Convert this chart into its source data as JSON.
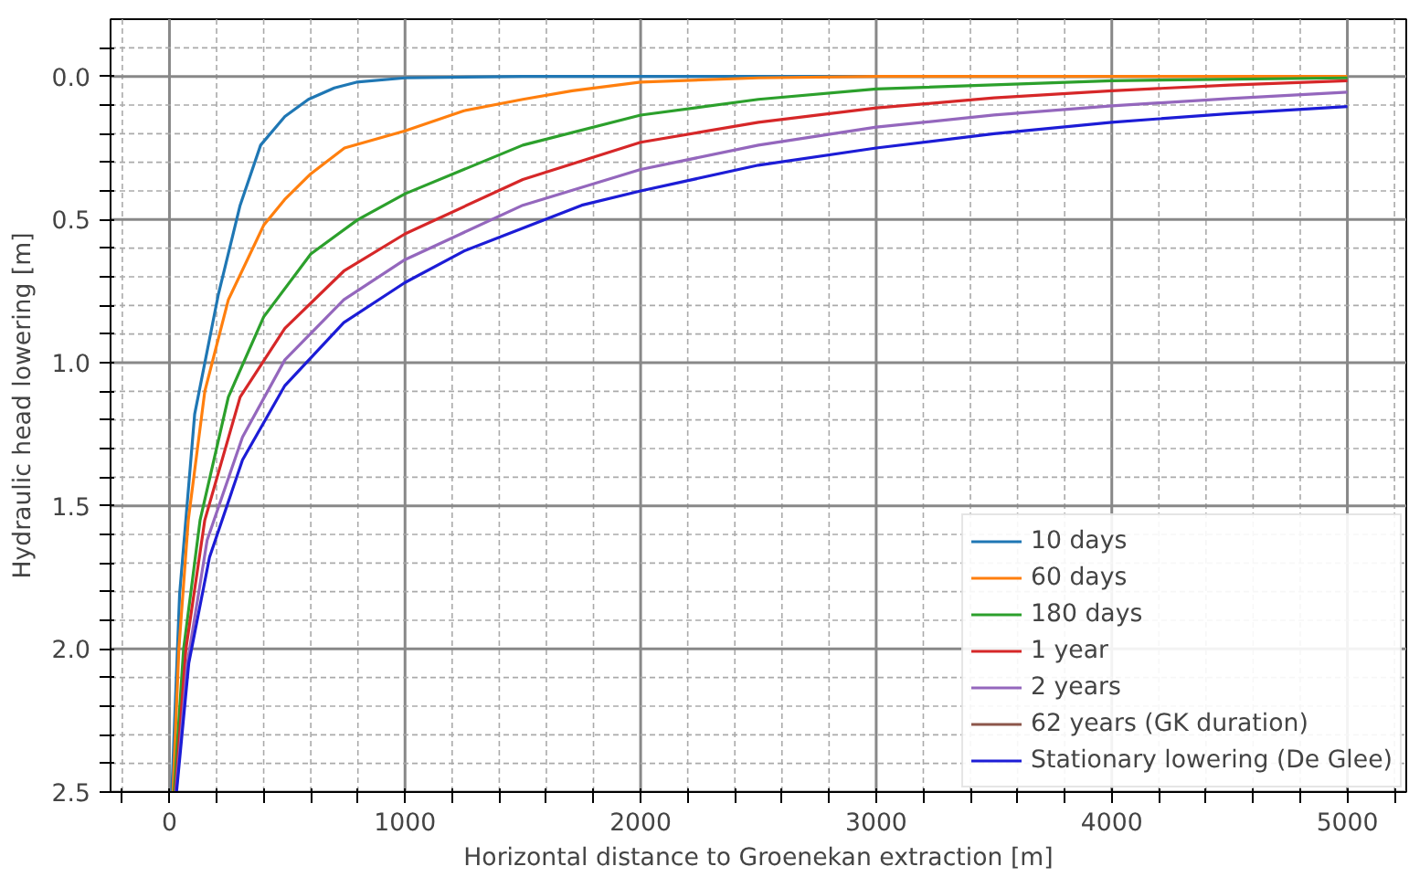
{
  "chart_data": {
    "type": "line",
    "xlabel": "Horizontal distance to Groenekan extraction [m]",
    "ylabel": "Hydraulic head lowering [m]",
    "xlim": [
      -250,
      5250
    ],
    "ylim": [
      2.5,
      -0.2
    ],
    "xticks": [
      {
        "value": -200,
        "label": null
      },
      0,
      {
        "value": 200,
        "label": null
      },
      {
        "value": 400,
        "label": null
      },
      {
        "value": 600,
        "label": null
      },
      {
        "value": 800,
        "label": null
      },
      1000,
      {
        "value": 1200,
        "label": null
      },
      {
        "value": 1400,
        "label": null
      },
      {
        "value": 1600,
        "label": null
      },
      {
        "value": 1800,
        "label": null
      },
      2000,
      {
        "value": 2200,
        "label": null
      },
      {
        "value": 2400,
        "label": null
      },
      {
        "value": 2600,
        "label": null
      },
      {
        "value": 2800,
        "label": null
      },
      3000,
      {
        "value": 3200,
        "label": null
      },
      {
        "value": 3400,
        "label": null
      },
      {
        "value": 3600,
        "label": null
      },
      {
        "value": 3800,
        "label": null
      },
      4000,
      {
        "value": 4200,
        "label": null
      },
      {
        "value": 4400,
        "label": null
      },
      {
        "value": 4600,
        "label": null
      },
      {
        "value": 4800,
        "label": null
      },
      5000,
      {
        "value": 5200,
        "label": null
      }
    ],
    "yticks": [
      {
        "value": -0.1,
        "label": null
      },
      {
        "value": 0,
        "label": "0.0"
      },
      {
        "value": 0.1,
        "label": null
      },
      {
        "value": 0.2,
        "label": null
      },
      {
        "value": 0.3,
        "label": null
      },
      {
        "value": 0.4,
        "label": null
      },
      0.5,
      {
        "value": 0.6,
        "label": null
      },
      {
        "value": 0.7,
        "label": null
      },
      {
        "value": 0.8,
        "label": null
      },
      {
        "value": 0.9,
        "label": null
      },
      {
        "value": 1,
        "label": "1.0"
      },
      {
        "value": 1.1,
        "label": null
      },
      {
        "value": 1.2,
        "label": null
      },
      {
        "value": 1.3,
        "label": null
      },
      {
        "value": 1.4,
        "label": null
      },
      1.5,
      {
        "value": 1.6,
        "label": null
      },
      {
        "value": 1.7,
        "label": null
      },
      {
        "value": 1.8,
        "label": null
      },
      {
        "value": 1.9,
        "label": null
      },
      {
        "value": 2,
        "label": "2.0"
      },
      {
        "value": 2.1,
        "label": null
      },
      {
        "value": 2.2,
        "label": null
      },
      {
        "value": 2.3,
        "label": null
      },
      {
        "value": 2.4,
        "label": null
      },
      2.5
    ],
    "grid": true,
    "legend": "bottom right",
    "line_style": "solid",
    "marker": "none",
    "series": [
      {
        "name": "10 days",
        "color": "#1f77b4",
        "x": [
          10,
          43,
          107,
          208,
          300,
          387,
          490,
          590,
          700,
          794,
          1000,
          1500,
          2000,
          3000,
          4000,
          5000
        ],
        "values": [
          2.5,
          1.81,
          1.18,
          0.76,
          0.45,
          0.24,
          0.14,
          0.08,
          0.04,
          0.02,
          0.005,
          0,
          0,
          0,
          0,
          0
        ]
      },
      {
        "name": "60 days",
        "color": "#ff7f0e",
        "x": [
          15,
          40,
          80,
          150,
          250,
          400,
          489,
          600,
          743,
          1000,
          1250,
          1500,
          1710,
          2000,
          2500,
          3000,
          4000,
          5000
        ],
        "values": [
          2.5,
          2.0,
          1.55,
          1.1,
          0.78,
          0.52,
          0.43,
          0.34,
          0.25,
          0.19,
          0.12,
          0.08,
          0.05,
          0.02,
          0.005,
          0,
          0,
          0
        ]
      },
      {
        "name": "180 days",
        "color": "#2ca02c",
        "x": [
          20,
          60,
          130,
          250,
          400,
          600,
          800,
          1000,
          1500,
          2000,
          2500,
          3000,
          4000,
          5000
        ],
        "values": [
          2.5,
          2.0,
          1.55,
          1.12,
          0.84,
          0.62,
          0.5,
          0.41,
          0.24,
          0.135,
          0.08,
          0.044,
          0.015,
          0.005
        ]
      },
      {
        "name": "1 year",
        "color": "#d62728",
        "x": [
          25,
          70,
          150,
          300,
          490,
          740,
          1000,
          1500,
          2000,
          2500,
          3000,
          3500,
          4000,
          4500,
          5000
        ],
        "values": [
          2.5,
          2.0,
          1.55,
          1.12,
          0.88,
          0.68,
          0.55,
          0.36,
          0.23,
          0.16,
          0.11,
          0.075,
          0.05,
          0.03,
          0.015
        ]
      },
      {
        "name": "2 years",
        "color": "#9467bd",
        "x": [
          28,
          76,
          160,
          310,
          490,
          740,
          1000,
          1500,
          2000,
          2500,
          3000,
          3500,
          4000,
          4500,
          5000
        ],
        "values": [
          2.5,
          2.05,
          1.62,
          1.26,
          0.99,
          0.78,
          0.64,
          0.45,
          0.325,
          0.24,
          0.177,
          0.135,
          0.103,
          0.077,
          0.055
        ]
      },
      {
        "name": "62 years (GK duration)",
        "color": "#8c564b"
      },
      {
        "name": "Stationary lowering (De Glee)",
        "color": "#1c1cd6",
        "x": [
          30,
          82,
          170,
          310,
          490,
          740,
          1000,
          1250,
          1500,
          1750,
          2000,
          2500,
          3000,
          3500,
          4000,
          4500,
          5000
        ],
        "values": [
          2.5,
          2.05,
          1.68,
          1.34,
          1.08,
          0.86,
          0.72,
          0.61,
          0.53,
          0.45,
          0.4,
          0.31,
          0.25,
          0.2,
          0.16,
          0.13,
          0.105
        ]
      }
    ]
  }
}
